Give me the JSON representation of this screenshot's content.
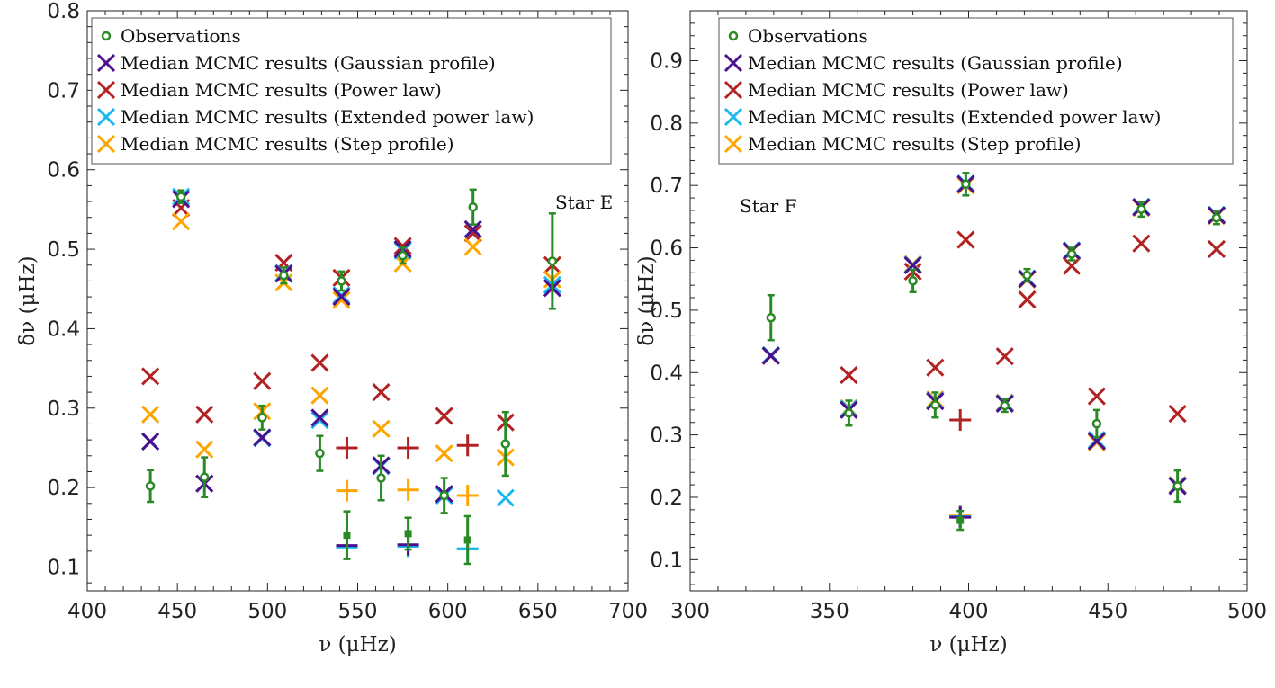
{
  "colors": {
    "observations": "#2a8a25",
    "gaussian": "#4b0f8f",
    "power": "#b22222",
    "extended": "#1ab8ef",
    "step": "#ffa500"
  },
  "legend": [
    {
      "key": "observations",
      "label": "Observations",
      "marker": "circle"
    },
    {
      "key": "gaussian",
      "label": "Median MCMC results (Gaussian profile)",
      "marker": "x"
    },
    {
      "key": "power",
      "label": "Median MCMC results (Power law)",
      "marker": "x"
    },
    {
      "key": "extended",
      "label": "Median MCMC results (Extended power law)",
      "marker": "x"
    },
    {
      "key": "step",
      "label": "Median MCMC results (Step profile)",
      "marker": "x"
    }
  ],
  "chart_data": [
    {
      "type": "scatter",
      "annotation": "Star E",
      "xlabel": "ν (μHz)",
      "ylabel": "δν (μHz)",
      "xlim": [
        400,
        700
      ],
      "ylim": [
        0.07,
        0.8
      ],
      "xticks": [
        "400",
        "450",
        "500",
        "550",
        "600",
        "650",
        "700"
      ],
      "yticks": [
        "0.1",
        "0.2",
        "0.3",
        "0.4",
        "0.5",
        "0.6",
        "0.7",
        "0.8"
      ],
      "observations": [
        {
          "x": 435,
          "y": 0.202,
          "err": 0.02,
          "m": "o"
        },
        {
          "x": 452,
          "y": 0.566,
          "err": 0.008,
          "m": "o"
        },
        {
          "x": 465,
          "y": 0.213,
          "err": 0.025,
          "m": "o"
        },
        {
          "x": 497,
          "y": 0.288,
          "err": 0.015,
          "m": "o"
        },
        {
          "x": 509,
          "y": 0.467,
          "err": 0.01,
          "m": "o"
        },
        {
          "x": 529,
          "y": 0.243,
          "err": 0.022,
          "m": "o"
        },
        {
          "x": 541,
          "y": 0.46,
          "err": 0.012,
          "m": "o"
        },
        {
          "x": 544,
          "y": 0.14,
          "err": 0.03,
          "m": "s"
        },
        {
          "x": 563,
          "y": 0.212,
          "err": 0.028,
          "m": "o"
        },
        {
          "x": 575,
          "y": 0.492,
          "err": 0.01,
          "m": "o"
        },
        {
          "x": 578,
          "y": 0.142,
          "err": 0.02,
          "m": "s"
        },
        {
          "x": 598,
          "y": 0.19,
          "err": 0.022,
          "m": "o"
        },
        {
          "x": 611,
          "y": 0.134,
          "err": 0.03,
          "m": "s"
        },
        {
          "x": 614,
          "y": 0.553,
          "err": 0.022,
          "m": "o"
        },
        {
          "x": 632,
          "y": 0.255,
          "err": 0.04,
          "m": "o"
        },
        {
          "x": 658,
          "y": 0.485,
          "err": 0.06,
          "m": "o"
        }
      ],
      "series": [
        {
          "name": "gaussian",
          "points": [
            {
              "x": 435,
              "y": 0.258,
              "m": "x"
            },
            {
              "x": 452,
              "y": 0.563,
              "m": "x"
            },
            {
              "x": 465,
              "y": 0.205,
              "m": "x"
            },
            {
              "x": 497,
              "y": 0.263,
              "m": "x"
            },
            {
              "x": 509,
              "y": 0.469,
              "m": "x"
            },
            {
              "x": 529,
              "y": 0.288,
              "m": "x"
            },
            {
              "x": 541,
              "y": 0.44,
              "m": "x"
            },
            {
              "x": 544,
              "y": 0.127,
              "m": "+"
            },
            {
              "x": 563,
              "y": 0.228,
              "m": "x"
            },
            {
              "x": 575,
              "y": 0.5,
              "m": "x"
            },
            {
              "x": 578,
              "y": 0.128,
              "m": "+"
            },
            {
              "x": 598,
              "y": 0.192,
              "m": "x"
            },
            {
              "x": 614,
              "y": 0.525,
              "m": "x"
            },
            {
              "x": 658,
              "y": 0.451,
              "m": "x"
            }
          ]
        },
        {
          "name": "power",
          "points": [
            {
              "x": 435,
              "y": 0.34,
              "m": "x"
            },
            {
              "x": 452,
              "y": 0.552,
              "m": "x"
            },
            {
              "x": 465,
              "y": 0.292,
              "m": "x"
            },
            {
              "x": 497,
              "y": 0.334,
              "m": "x"
            },
            {
              "x": 509,
              "y": 0.483,
              "m": "x"
            },
            {
              "x": 529,
              "y": 0.357,
              "m": "x"
            },
            {
              "x": 541,
              "y": 0.464,
              "m": "x"
            },
            {
              "x": 544,
              "y": 0.25,
              "m": "+"
            },
            {
              "x": 563,
              "y": 0.32,
              "m": "x"
            },
            {
              "x": 575,
              "y": 0.504,
              "m": "x"
            },
            {
              "x": 578,
              "y": 0.25,
              "m": "+"
            },
            {
              "x": 598,
              "y": 0.29,
              "m": "x"
            },
            {
              "x": 611,
              "y": 0.253,
              "m": "+"
            },
            {
              "x": 614,
              "y": 0.52,
              "m": "x"
            },
            {
              "x": 632,
              "y": 0.282,
              "m": "x"
            },
            {
              "x": 658,
              "y": 0.48,
              "m": "x"
            }
          ]
        },
        {
          "name": "extended",
          "points": [
            {
              "x": 435,
              "y": 0.258,
              "m": "x"
            },
            {
              "x": 452,
              "y": 0.566,
              "m": "x"
            },
            {
              "x": 465,
              "y": 0.205,
              "m": "x"
            },
            {
              "x": 497,
              "y": 0.262,
              "m": "x"
            },
            {
              "x": 509,
              "y": 0.47,
              "m": "x"
            },
            {
              "x": 529,
              "y": 0.285,
              "m": "x"
            },
            {
              "x": 541,
              "y": 0.442,
              "m": "x"
            },
            {
              "x": 544,
              "y": 0.125,
              "m": "+"
            },
            {
              "x": 563,
              "y": 0.227,
              "m": "x"
            },
            {
              "x": 575,
              "y": 0.498,
              "m": "x"
            },
            {
              "x": 578,
              "y": 0.126,
              "m": "+"
            },
            {
              "x": 598,
              "y": 0.19,
              "m": "x"
            },
            {
              "x": 611,
              "y": 0.123,
              "m": "+"
            },
            {
              "x": 614,
              "y": 0.525,
              "m": "x"
            },
            {
              "x": 632,
              "y": 0.187,
              "m": "x"
            },
            {
              "x": 658,
              "y": 0.455,
              "m": "x"
            }
          ]
        },
        {
          "name": "step",
          "points": [
            {
              "x": 435,
              "y": 0.292,
              "m": "x"
            },
            {
              "x": 452,
              "y": 0.535,
              "m": "x"
            },
            {
              "x": 465,
              "y": 0.248,
              "m": "x"
            },
            {
              "x": 497,
              "y": 0.296,
              "m": "x"
            },
            {
              "x": 509,
              "y": 0.458,
              "m": "x"
            },
            {
              "x": 529,
              "y": 0.316,
              "m": "x"
            },
            {
              "x": 541,
              "y": 0.436,
              "m": "x"
            },
            {
              "x": 544,
              "y": 0.196,
              "m": "+"
            },
            {
              "x": 563,
              "y": 0.274,
              "m": "x"
            },
            {
              "x": 575,
              "y": 0.482,
              "m": "x"
            },
            {
              "x": 578,
              "y": 0.197,
              "m": "+"
            },
            {
              "x": 598,
              "y": 0.243,
              "m": "x"
            },
            {
              "x": 611,
              "y": 0.19,
              "m": "+"
            },
            {
              "x": 614,
              "y": 0.503,
              "m": "x"
            },
            {
              "x": 632,
              "y": 0.238,
              "m": "x"
            },
            {
              "x": 658,
              "y": 0.462,
              "m": "x"
            }
          ]
        }
      ]
    },
    {
      "type": "scatter",
      "annotation": "Star F",
      "xlabel": "ν (μHz)",
      "ylabel": "δν (μHz)",
      "xlim": [
        300,
        500
      ],
      "ylim": [
        0.05,
        0.98
      ],
      "xticks": [
        "300",
        "350",
        "400",
        "450",
        "500"
      ],
      "yticks": [
        "0.1",
        "0.2",
        "0.3",
        "0.4",
        "0.5",
        "0.6",
        "0.7",
        "0.8",
        "0.9"
      ],
      "observations": [
        {
          "x": 329,
          "y": 0.488,
          "err": 0.036,
          "m": "o"
        },
        {
          "x": 357,
          "y": 0.335,
          "err": 0.02,
          "m": "o"
        },
        {
          "x": 380,
          "y": 0.547,
          "err": 0.018,
          "m": "o"
        },
        {
          "x": 388,
          "y": 0.348,
          "err": 0.02,
          "m": "o"
        },
        {
          "x": 397,
          "y": 0.163,
          "err": 0.015,
          "m": "s"
        },
        {
          "x": 399,
          "y": 0.702,
          "err": 0.018,
          "m": "o"
        },
        {
          "x": 413,
          "y": 0.347,
          "err": 0.01,
          "m": "o"
        },
        {
          "x": 421,
          "y": 0.556,
          "err": 0.01,
          "m": "o"
        },
        {
          "x": 437,
          "y": 0.59,
          "err": 0.01,
          "m": "o"
        },
        {
          "x": 446,
          "y": 0.318,
          "err": 0.022,
          "m": "o"
        },
        {
          "x": 462,
          "y": 0.662,
          "err": 0.012,
          "m": "o"
        },
        {
          "x": 475,
          "y": 0.218,
          "err": 0.025,
          "m": "o"
        },
        {
          "x": 489,
          "y": 0.648,
          "err": 0.01,
          "m": "o"
        }
      ],
      "series": [
        {
          "name": "gaussian",
          "points": [
            {
              "x": 329,
              "y": 0.427,
              "m": "x"
            },
            {
              "x": 357,
              "y": 0.34,
              "m": "x"
            },
            {
              "x": 380,
              "y": 0.572,
              "m": "x"
            },
            {
              "x": 388,
              "y": 0.354,
              "m": "x"
            },
            {
              "x": 397,
              "y": 0.168,
              "m": "+"
            },
            {
              "x": 399,
              "y": 0.702,
              "m": "x"
            },
            {
              "x": 413,
              "y": 0.35,
              "m": "x"
            },
            {
              "x": 421,
              "y": 0.55,
              "m": "x"
            },
            {
              "x": 437,
              "y": 0.595,
              "m": "x"
            },
            {
              "x": 446,
              "y": 0.29,
              "m": "x"
            },
            {
              "x": 462,
              "y": 0.665,
              "m": "x"
            },
            {
              "x": 475,
              "y": 0.218,
              "m": "x"
            },
            {
              "x": 489,
              "y": 0.652,
              "m": "x"
            }
          ]
        },
        {
          "name": "power",
          "points": [
            {
              "x": 329,
              "y": 0.427,
              "m": "x"
            },
            {
              "x": 357,
              "y": 0.396,
              "m": "x"
            },
            {
              "x": 380,
              "y": 0.562,
              "m": "x"
            },
            {
              "x": 388,
              "y": 0.408,
              "m": "x"
            },
            {
              "x": 397,
              "y": 0.324,
              "m": "+"
            },
            {
              "x": 399,
              "y": 0.613,
              "m": "x"
            },
            {
              "x": 413,
              "y": 0.426,
              "m": "x"
            },
            {
              "x": 421,
              "y": 0.517,
              "m": "x"
            },
            {
              "x": 437,
              "y": 0.571,
              "m": "x"
            },
            {
              "x": 446,
              "y": 0.362,
              "m": "x"
            },
            {
              "x": 462,
              "y": 0.607,
              "m": "x"
            },
            {
              "x": 475,
              "y": 0.334,
              "m": "x"
            },
            {
              "x": 489,
              "y": 0.598,
              "m": "x"
            }
          ]
        },
        {
          "name": "extended",
          "points": [
            {
              "x": 329,
              "y": 0.428,
              "m": "x"
            },
            {
              "x": 357,
              "y": 0.342,
              "m": "x"
            },
            {
              "x": 380,
              "y": 0.573,
              "m": "x"
            },
            {
              "x": 388,
              "y": 0.355,
              "m": "x"
            },
            {
              "x": 397,
              "y": 0.169,
              "m": "+"
            },
            {
              "x": 399,
              "y": 0.703,
              "m": "x"
            },
            {
              "x": 413,
              "y": 0.351,
              "m": "x"
            },
            {
              "x": 421,
              "y": 0.551,
              "m": "x"
            },
            {
              "x": 437,
              "y": 0.596,
              "m": "x"
            },
            {
              "x": 446,
              "y": 0.292,
              "m": "x"
            },
            {
              "x": 462,
              "y": 0.666,
              "m": "x"
            },
            {
              "x": 475,
              "y": 0.219,
              "m": "x"
            },
            {
              "x": 489,
              "y": 0.653,
              "m": "x"
            }
          ]
        },
        {
          "name": "step",
          "points": [
            {
              "x": 329,
              "y": 0.427,
              "m": "x"
            },
            {
              "x": 357,
              "y": 0.343,
              "m": "x"
            },
            {
              "x": 380,
              "y": 0.574,
              "m": "x"
            },
            {
              "x": 388,
              "y": 0.357,
              "m": "x"
            },
            {
              "x": 397,
              "y": 0.17,
              "m": "+"
            },
            {
              "x": 399,
              "y": 0.7,
              "m": "x"
            },
            {
              "x": 413,
              "y": 0.352,
              "m": "x"
            },
            {
              "x": 421,
              "y": 0.549,
              "m": "x"
            },
            {
              "x": 437,
              "y": 0.594,
              "m": "x"
            },
            {
              "x": 446,
              "y": 0.288,
              "m": "x"
            },
            {
              "x": 462,
              "y": 0.664,
              "m": "x"
            },
            {
              "x": 475,
              "y": 0.22,
              "m": "x"
            },
            {
              "x": 489,
              "y": 0.651,
              "m": "x"
            }
          ]
        }
      ]
    }
  ]
}
